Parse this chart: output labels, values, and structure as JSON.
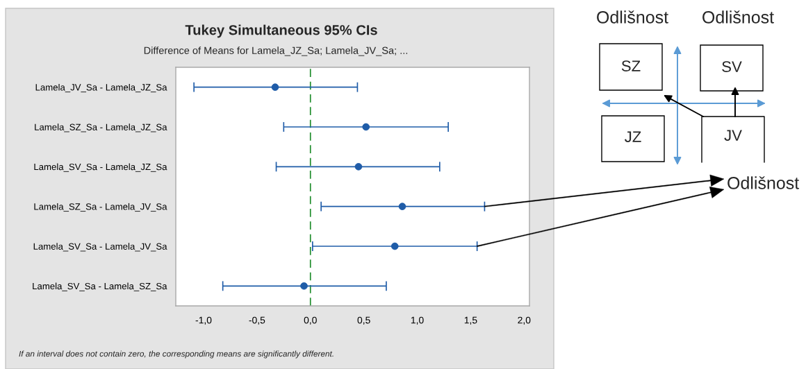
{
  "chart_data": {
    "type": "scatter",
    "orientation": "horizontal",
    "title": "Tukey Simultaneous 95% CIs",
    "subtitle": "Difference of Means for Lamela_JZ_Sa; Lamela_JV_Sa; ...",
    "categories": [
      "Lamela_JV_Sa - Lamela_JZ_Sa",
      "Lamela_SZ_Sa - Lamela_JZ_Sa",
      "Lamela_SV_Sa - Lamela_JZ_Sa",
      "Lamela_SZ_Sa - Lamela_JV_Sa",
      "Lamela_SV_Sa - Lamela_JV_Sa",
      "Lamela_SV_Sa - Lamela_SZ_Sa"
    ],
    "values": [
      -0.33,
      0.52,
      0.45,
      0.86,
      0.79,
      -0.06
    ],
    "errors": [
      [
        -1.09,
        0.44
      ],
      [
        -0.25,
        1.29
      ],
      [
        -0.32,
        1.21
      ],
      [
        0.1,
        1.63
      ],
      [
        0.02,
        1.56
      ],
      [
        -0.82,
        0.71
      ]
    ],
    "color": "#1f5ca8",
    "marker": "circle",
    "xlim": [
      -1.26,
      2.05
    ],
    "xticks": [
      {
        "value": -1.0,
        "label": "-1,0"
      },
      {
        "value": -0.5,
        "label": "-0,5"
      },
      {
        "value": 0.0,
        "label": "0,0"
      },
      {
        "value": 0.5,
        "label": "0,5"
      },
      {
        "value": 1.0,
        "label": "1,0"
      },
      {
        "value": 1.5,
        "label": "1,5"
      },
      {
        "value": 2.0,
        "label": "2,0"
      }
    ],
    "ref_lines": [
      {
        "axis": "x",
        "value": 0,
        "color": "#1e8c2a",
        "line_style": "dashed"
      }
    ],
    "annotations": [
      "Odlišnost",
      "Odlišnost",
      "SZ",
      "SV",
      "JZ",
      "JV",
      "Odlišnost",
      "If an interval does not contain zero, the corresponding means are significantly different."
    ]
  }
}
